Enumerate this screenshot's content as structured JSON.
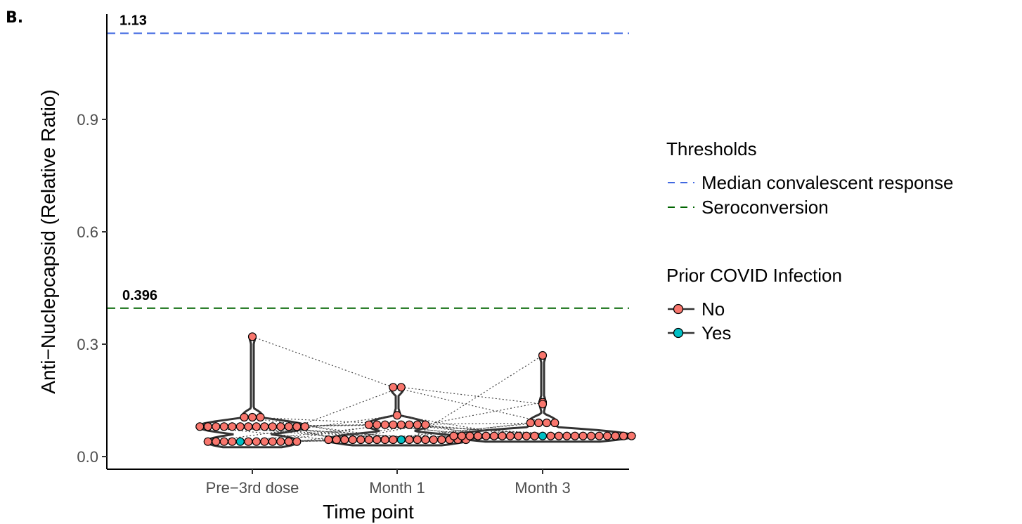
{
  "panel_label": "B.",
  "chart_data": {
    "type": "scatter",
    "xlabel": "Time point",
    "ylabel": "Anti−Nuclepcapsid (Relative Ratio)",
    "categories": [
      "Pre−3rd dose",
      "Month 1",
      "Month 3"
    ],
    "ylim": [
      -0.03,
      1.18
    ],
    "yticks": [
      0.0,
      0.3,
      0.6,
      0.9
    ],
    "ytick_labels": [
      "0.0",
      "0.3",
      "0.6",
      "0.9"
    ],
    "grid": false,
    "thresholds": [
      {
        "name": "Median convalescent response",
        "value": 1.13,
        "label": "1.13",
        "color": "#4169E1"
      },
      {
        "name": "Seroconversion",
        "value": 0.396,
        "label": "0.396",
        "color": "#006400"
      }
    ],
    "legend_thresholds_title": "Thresholds",
    "legend_infection_title": "Prior COVID Infection",
    "groups": [
      {
        "name": "No",
        "color": "#F8766D"
      },
      {
        "name": "Yes",
        "color": "#00BFC4"
      }
    ],
    "points": [
      {
        "category": "Pre−3rd dose",
        "no": [
          0.32,
          0.105,
          0.105,
          0.105,
          0.08,
          0.08,
          0.08,
          0.08,
          0.08,
          0.08,
          0.08,
          0.08,
          0.08,
          0.08,
          0.08,
          0.08,
          0.08,
          0.08,
          0.04,
          0.04,
          0.04,
          0.04,
          0.04,
          0.04,
          0.04,
          0.04,
          0.04,
          0.04,
          0.04
        ],
        "yes": [
          0.04
        ]
      },
      {
        "category": "Month 1",
        "no": [
          0.185,
          0.185,
          0.11,
          0.085,
          0.085,
          0.085,
          0.085,
          0.085,
          0.085,
          0.085,
          0.085,
          0.045,
          0.045,
          0.045,
          0.045,
          0.045,
          0.045,
          0.045,
          0.045,
          0.045,
          0.045,
          0.045,
          0.045,
          0.045,
          0.045,
          0.045,
          0.045,
          0.045
        ],
        "yes": [
          0.045
        ]
      },
      {
        "category": "Month 3",
        "no": [
          0.27,
          0.145,
          0.14,
          0.09,
          0.09,
          0.09,
          0.09,
          0.055,
          0.055,
          0.055,
          0.055,
          0.055,
          0.055,
          0.055,
          0.055,
          0.055,
          0.055,
          0.055,
          0.055,
          0.055,
          0.055,
          0.055,
          0.055,
          0.055,
          0.055,
          0.055,
          0.055,
          0.055,
          0.055
        ],
        "yes": [
          0.055
        ]
      }
    ]
  }
}
